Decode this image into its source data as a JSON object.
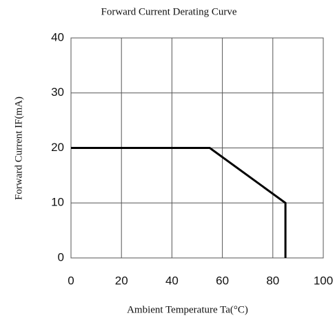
{
  "chart_data": {
    "type": "line",
    "title": "Forward Current Derating Curve",
    "x_label": "Ambient Temperature Ta(°C)",
    "y_label": "Forward Current  IF(mA)",
    "x": [
      0,
      55,
      85,
      85
    ],
    "values": [
      20,
      20,
      10,
      0
    ],
    "color": "#000000",
    "xlim": [
      0,
      100
    ],
    "xticks": [
      0,
      20,
      40,
      60,
      80,
      100
    ],
    "ylim": [
      0,
      40
    ],
    "yticks": [
      0,
      10,
      20,
      30,
      40
    ],
    "grid": true
  }
}
